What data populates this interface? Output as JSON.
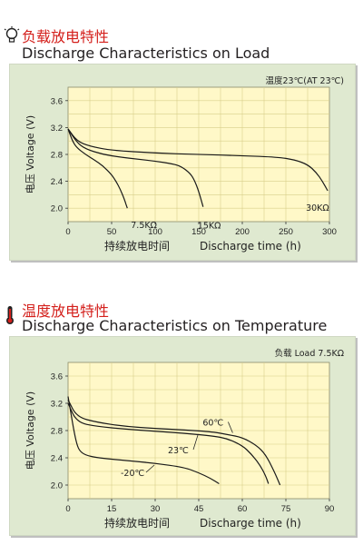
{
  "sections": [
    {
      "title_cn": "负载放电特性",
      "title_en": "Discharge Characteristics on Load",
      "condition": "温度23℃(AT 23℃)",
      "icon": "lightbulb-icon"
    },
    {
      "title_cn": "温度放电特性",
      "title_en": "Discharge Characteristics on Temperature",
      "condition": "负载  Load 7.5KΩ",
      "icon": "thermometer-icon"
    }
  ],
  "chart_data": [
    {
      "type": "line",
      "title": "Discharge Characteristics on Load",
      "ylabel": "电压 Voltage (V)",
      "xlabel_cn": "持续放电时间",
      "xlabel_en": "Discharge time (h)",
      "xlim": [
        0,
        300
      ],
      "ylim": [
        1.8,
        3.8
      ],
      "xticks": [
        "0",
        "50",
        "100",
        "150",
        "200",
        "250",
        "300"
      ],
      "yticks": [
        "2.0",
        "2.4",
        "2.8",
        "3.2",
        "3.6"
      ],
      "grid": true,
      "plot_bg": "#fff8c8",
      "series": [
        {
          "name": "7.5KΩ",
          "x": [
            0,
            5,
            10,
            20,
            30,
            40,
            50,
            55,
            60,
            65,
            68
          ],
          "y": [
            3.18,
            3.0,
            2.9,
            2.8,
            2.72,
            2.63,
            2.5,
            2.4,
            2.28,
            2.12,
            2.0
          ]
        },
        {
          "name": "15KΩ",
          "x": [
            0,
            10,
            20,
            40,
            60,
            80,
            100,
            120,
            130,
            140,
            145,
            150,
            155
          ],
          "y": [
            3.18,
            2.98,
            2.88,
            2.8,
            2.76,
            2.73,
            2.7,
            2.66,
            2.62,
            2.52,
            2.42,
            2.25,
            2.02
          ]
        },
        {
          "name": "30KΩ",
          "x": [
            0,
            10,
            25,
            50,
            100,
            150,
            200,
            240,
            260,
            275,
            285,
            292,
            298
          ],
          "y": [
            3.18,
            3.0,
            2.92,
            2.86,
            2.82,
            2.8,
            2.78,
            2.76,
            2.72,
            2.65,
            2.53,
            2.4,
            2.26
          ]
        }
      ],
      "series_labels": [
        "7.5KΩ",
        "15KΩ",
        "30KΩ"
      ]
    },
    {
      "type": "line",
      "title": "Discharge Characteristics on Temperature",
      "ylabel": "电压 Voltage (V)",
      "xlabel_cn": "持续放电时间",
      "xlabel_en": "Discharge time (h)",
      "xlim": [
        0,
        90
      ],
      "ylim": [
        1.8,
        3.8
      ],
      "xticks": [
        "0",
        "15",
        "30",
        "45",
        "60",
        "75",
        "90"
      ],
      "yticks": [
        "2.0",
        "2.4",
        "2.8",
        "3.2",
        "3.6"
      ],
      "grid": true,
      "plot_bg": "#fff8c8",
      "series": [
        {
          "name": "-20℃",
          "x": [
            0,
            1,
            2,
            3,
            4,
            6,
            10,
            20,
            30,
            40,
            45,
            49,
            52
          ],
          "y": [
            3.3,
            3.05,
            2.8,
            2.6,
            2.5,
            2.44,
            2.4,
            2.36,
            2.32,
            2.26,
            2.18,
            2.1,
            2.02
          ]
        },
        {
          "name": "23℃",
          "x": [
            0,
            3,
            10,
            20,
            30,
            40,
            50,
            55,
            60,
            63,
            66,
            68,
            69
          ],
          "y": [
            3.2,
            2.92,
            2.86,
            2.82,
            2.79,
            2.76,
            2.72,
            2.68,
            2.58,
            2.46,
            2.3,
            2.14,
            2.02
          ]
        },
        {
          "name": "60℃",
          "x": [
            0,
            3,
            10,
            20,
            30,
            40,
            50,
            55,
            60,
            65,
            68,
            71,
            73
          ],
          "y": [
            3.25,
            3.0,
            2.92,
            2.86,
            2.83,
            2.81,
            2.78,
            2.74,
            2.7,
            2.58,
            2.45,
            2.2,
            2.0
          ]
        }
      ],
      "series_labels": [
        "-20℃",
        "23℃",
        "60℃"
      ]
    }
  ]
}
